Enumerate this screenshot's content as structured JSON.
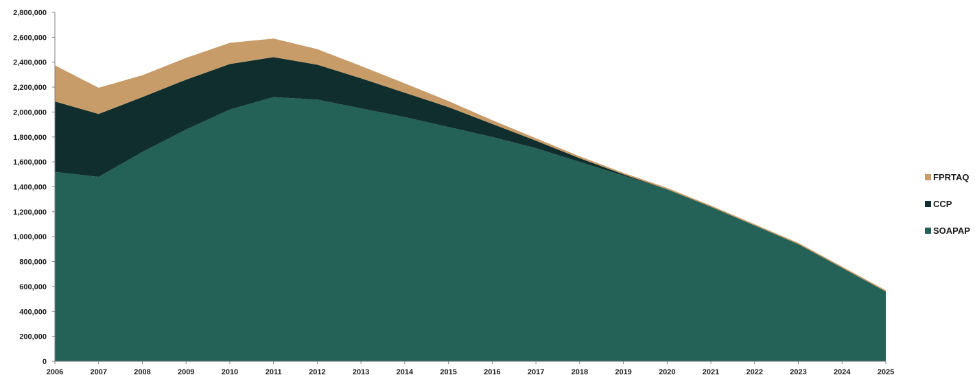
{
  "chart_data": {
    "type": "area",
    "stacked": true,
    "x": [
      "2006",
      "2007",
      "2008",
      "2009",
      "2010",
      "2011",
      "2012",
      "2013",
      "2014",
      "2015",
      "2016",
      "2017",
      "2018",
      "2019",
      "2020",
      "2021",
      "2022",
      "2023",
      "2024",
      "2025"
    ],
    "series": [
      {
        "name": "SOAPAP",
        "color": "#246157",
        "values": [
          1520000,
          1480000,
          1680000,
          1860000,
          2020000,
          2120000,
          2100000,
          2030000,
          1960000,
          1880000,
          1800000,
          1710000,
          1600000,
          1490000,
          1380000,
          1240000,
          1090000,
          940000,
          750000,
          560000
        ]
      },
      {
        "name": "CCP",
        "color": "#0f2e2d",
        "values": [
          565000,
          505000,
          440000,
          400000,
          365000,
          320000,
          280000,
          240000,
          195000,
          160000,
          105000,
          60000,
          30000,
          10000,
          0,
          0,
          0,
          0,
          0,
          0
        ]
      },
      {
        "name": "FPRTAQ",
        "color": "#c89c68",
        "values": [
          290000,
          210000,
          175000,
          175000,
          170000,
          150000,
          125000,
          100000,
          75000,
          48000,
          30000,
          20000,
          15000,
          12000,
          12000,
          10000,
          10000,
          10000,
          10000,
          10000
        ]
      }
    ],
    "y_ticks": [
      "0",
      "200,000",
      "400,000",
      "600,000",
      "800,000",
      "1,000,000",
      "1,200,000",
      "1,400,000",
      "1,600,000",
      "1,800,000",
      "2,000,000",
      "2,200,000",
      "2,400,000",
      "2,600,000",
      "2,800,000"
    ],
    "ylim": [
      0,
      2800000
    ],
    "grid": false,
    "legend_position": "right",
    "legend": [
      "FPRTAQ",
      "CCP",
      "SOAPAP"
    ]
  }
}
